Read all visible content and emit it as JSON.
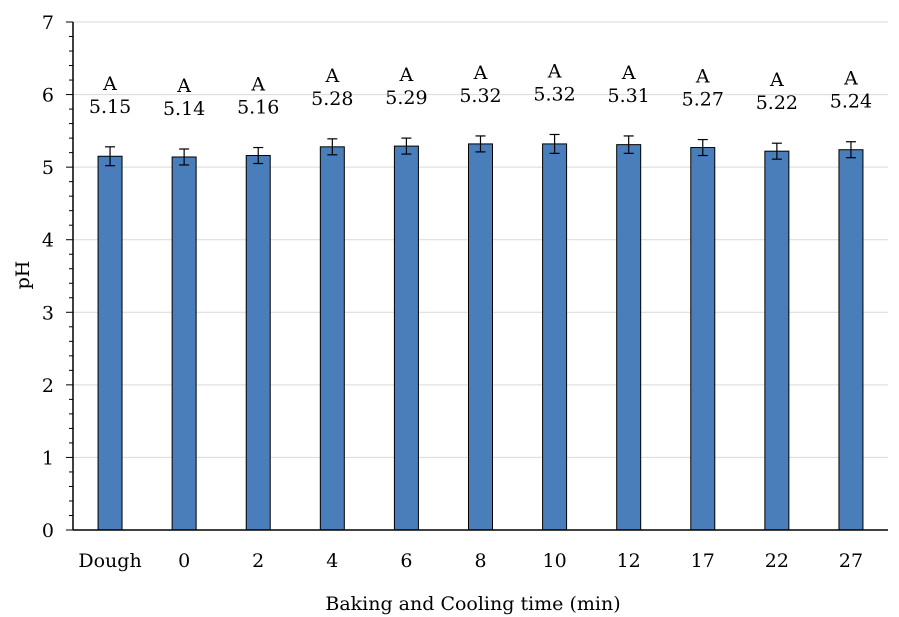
{
  "chart_data": {
    "type": "bar",
    "title": "",
    "xlabel": "Baking and Cooling time (min)",
    "ylabel": "pH",
    "ylim": [
      0,
      7
    ],
    "yticks": [
      0,
      1,
      2,
      3,
      4,
      5,
      6,
      7
    ],
    "grid": "horizontal",
    "legend": "none",
    "categories": [
      "Dough",
      "0",
      "2",
      "4",
      "6",
      "8",
      "10",
      "12",
      "17",
      "22",
      "27"
    ],
    "values": [
      5.15,
      5.14,
      5.16,
      5.28,
      5.29,
      5.32,
      5.32,
      5.31,
      5.27,
      5.22,
      5.24
    ],
    "value_labels": [
      "5.15",
      "5.14",
      "5.16",
      "5.28",
      "5.29",
      "5.32",
      "5.32",
      "5.31",
      "5.27",
      "5.22",
      "5.24"
    ],
    "error": [
      0.13,
      0.11,
      0.11,
      0.11,
      0.11,
      0.11,
      0.13,
      0.12,
      0.11,
      0.11,
      0.11
    ],
    "letters": [
      "A",
      "A",
      "A",
      "A",
      "A",
      "A",
      "A",
      "A",
      "A",
      "A",
      "A"
    ],
    "bar_color": "#4a7ebb"
  }
}
